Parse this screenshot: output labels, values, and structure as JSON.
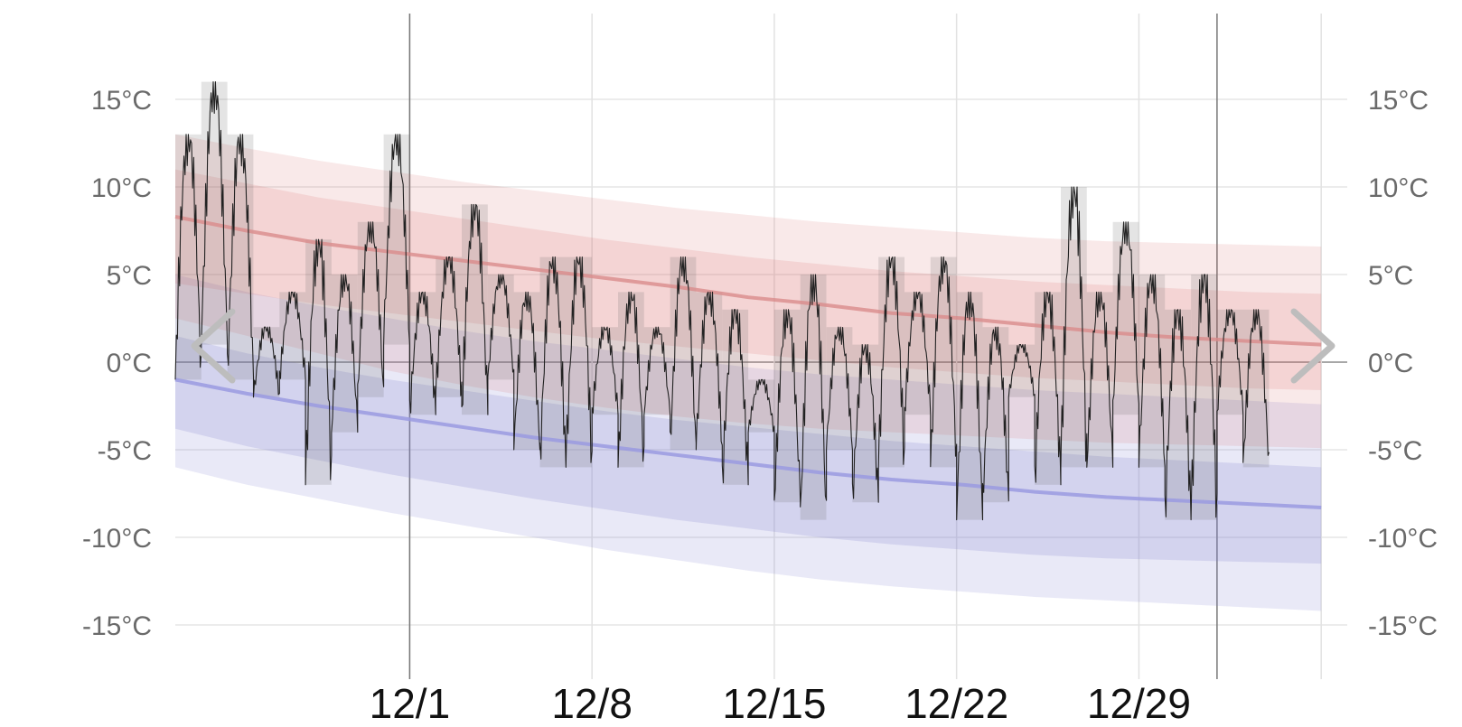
{
  "colors": {
    "high_band": "#d96b6b",
    "low_band": "#8585d2",
    "high_normal_line": "#d98b8b",
    "low_normal_line": "#9a9ae0",
    "temperature_line": "#222222",
    "daily_range_box": "#555555",
    "grid": "#e6e6e6",
    "nav_arrow": "#bdbdbd"
  },
  "nav": {
    "prev_icon": "chevron-left-icon",
    "next_icon": "chevron-right-icon"
  },
  "chart_data": {
    "type": "line",
    "title": "",
    "xlabel": "",
    "ylabel": "",
    "x_start": "11/22",
    "x_end": "1/5",
    "ylim": [
      -17.5,
      19
    ],
    "y_ticks": [
      15,
      10,
      5,
      0,
      -5,
      -10,
      -15
    ],
    "y_tick_labels": [
      "15°C",
      "10°C",
      "5°C",
      "0°C",
      "-5°C",
      "-10°C",
      "-15°C"
    ],
    "x_tick_labels": [
      "12/1",
      "12/8",
      "12/15",
      "12/22",
      "12/29"
    ],
    "x_tick_days": [
      9,
      16,
      23,
      30,
      37
    ],
    "month_divider_days": [
      9,
      40
    ],
    "grid": true,
    "days": [
      0,
      1,
      2,
      3,
      4,
      5,
      6,
      7,
      8,
      9,
      10,
      11,
      12,
      13,
      14,
      15,
      16,
      17,
      18,
      19,
      20,
      21,
      22,
      23,
      24,
      25,
      26,
      27,
      28,
      29,
      30,
      31,
      32,
      33,
      34,
      35,
      36,
      37,
      38,
      39,
      40,
      41,
      42,
      43,
      44
    ],
    "daily_high": [
      13,
      16,
      13,
      2,
      4,
      7,
      5,
      8,
      13,
      4,
      6,
      9,
      5,
      4,
      6,
      6,
      2,
      4,
      2,
      6,
      4,
      3,
      -1,
      3,
      5,
      2,
      1,
      6,
      4,
      6,
      4,
      2,
      1,
      4,
      10,
      4,
      8,
      5,
      3,
      5,
      3,
      3
    ],
    "daily_low": [
      -1,
      1,
      -1,
      -2,
      -1,
      -7,
      -4,
      -2,
      1,
      -3,
      -2,
      -3,
      -1,
      -5,
      -6,
      -6,
      -3,
      -6,
      -3,
      -5,
      -5,
      -7,
      -4,
      -8,
      -9,
      -5,
      -8,
      -6,
      -3,
      -6,
      -9,
      -8,
      -2,
      -7,
      -6,
      -6,
      -3,
      -6,
      -9,
      -9,
      -3,
      -6
    ],
    "series": [
      {
        "name": "",
        "role": "normal_high",
        "values": [
          8.3,
          7.5,
          6.8,
          6.3,
          5.8,
          5.3,
          4.8,
          4.3,
          3.7,
          3.3,
          2.8,
          2.5,
          2.1,
          1.7,
          1.4,
          1.2,
          1.0
        ]
      },
      {
        "name": "",
        "role": "normal_low",
        "values": [
          -1.0,
          -1.8,
          -2.5,
          -3.1,
          -3.7,
          -4.3,
          -4.8,
          -5.3,
          -5.8,
          -6.3,
          -6.7,
          -7.0,
          -7.4,
          -7.7,
          -7.9,
          -8.1,
          -8.3
        ]
      },
      {
        "name": "",
        "role": "high_record_band_top",
        "values": [
          13.0,
          12.2,
          11.5,
          10.9,
          10.3,
          9.8,
          9.3,
          8.8,
          8.4,
          8.0,
          7.7,
          7.4,
          7.1,
          6.9,
          6.8,
          6.7,
          6.6
        ]
      },
      {
        "name": "",
        "role": "high_p90_band_top",
        "values": [
          11.0,
          10.2,
          9.4,
          8.8,
          8.2,
          7.6,
          7.0,
          6.5,
          6.0,
          5.6,
          5.2,
          4.9,
          4.6,
          4.4,
          4.2,
          4.0,
          3.9
        ]
      },
      {
        "name": "",
        "role": "high_p10_band_bottom",
        "values": [
          4.5,
          3.9,
          3.3,
          2.8,
          2.3,
          1.8,
          1.3,
          0.9,
          0.5,
          0.1,
          -0.3,
          -0.6,
          -0.9,
          -1.1,
          -1.3,
          -1.5,
          -1.6
        ]
      },
      {
        "name": "",
        "role": "high_record_band_bottom",
        "values": [
          2.5,
          1.5,
          0.5,
          -0.5,
          -1.3,
          -2.0,
          -2.6,
          -3.1,
          -3.5,
          -3.8,
          -4.0,
          -4.2,
          -4.4,
          -4.6,
          -4.7,
          -4.8,
          -4.9
        ]
      },
      {
        "name": "",
        "role": "low_record_band_top",
        "values": [
          5.0,
          4.0,
          3.2,
          2.5,
          1.8,
          1.2,
          0.7,
          0.2,
          -0.3,
          -0.7,
          -1.0,
          -1.3,
          -1.6,
          -1.8,
          -2.0,
          -2.2,
          -2.4
        ]
      },
      {
        "name": "",
        "role": "low_p90_band_top",
        "values": [
          1.5,
          0.5,
          -0.3,
          -1.0,
          -1.6,
          -2.2,
          -2.8,
          -3.3,
          -3.7,
          -4.1,
          -4.5,
          -4.8,
          -5.1,
          -5.4,
          -5.6,
          -5.8,
          -6.0
        ]
      },
      {
        "name": "",
        "role": "low_p10_band_bottom",
        "values": [
          -3.8,
          -4.8,
          -5.6,
          -6.4,
          -7.1,
          -7.8,
          -8.4,
          -9.0,
          -9.5,
          -10.0,
          -10.4,
          -10.7,
          -11.0,
          -11.2,
          -11.3,
          -11.4,
          -11.5
        ]
      },
      {
        "name": "",
        "role": "low_record_band_bottom",
        "values": [
          -6.0,
          -7.0,
          -7.8,
          -8.6,
          -9.3,
          -10.0,
          -10.7,
          -11.3,
          -11.9,
          -12.4,
          -12.8,
          -13.1,
          -13.4,
          -13.6,
          -13.8,
          -14.0,
          -14.2
        ]
      }
    ]
  }
}
